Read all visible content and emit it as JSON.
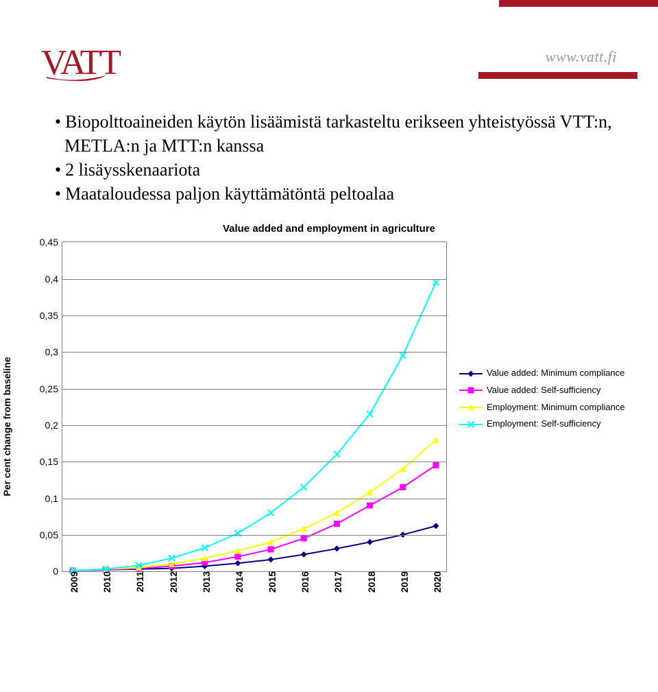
{
  "header": {
    "logo_text": "VATT",
    "logo_color": "#a31925",
    "url_text": "www.vatt.fi",
    "url_color": "#9a9a9a",
    "rule_color": "#a31925"
  },
  "bullets": [
    "Biopolttoaineiden käytön lisäämistä tarkasteltu erikseen yhteistyössä VTT:n, METLA:n ja MTT:n kanssa",
    "2 lisäysskenaariota",
    "Maataloudessa paljon käyttämätöntä peltoalaa"
  ],
  "chart": {
    "type": "line",
    "title": "Value added and employment in agriculture",
    "title_fontsize": 15,
    "ylabel": "Per cent change from baseline",
    "label_fontsize": 14,
    "background_color": "#ffffff",
    "grid_color": "#808080",
    "border_color": "#808080",
    "ylim": [
      0,
      0.45
    ],
    "ytick_step": 0.05,
    "yticks": [
      "0",
      "0,05",
      "0,1",
      "0,15",
      "0,2",
      "0,25",
      "0,3",
      "0,35",
      "0,4",
      "0,45"
    ],
    "x_categories": [
      "2009",
      "2010",
      "2011",
      "2012",
      "2013",
      "2014",
      "2015",
      "2016",
      "2017",
      "2018",
      "2019",
      "2020"
    ],
    "series": [
      {
        "name": "Value added: Minimum compliance",
        "color": "#000080",
        "marker": "diamond",
        "line_width": 2,
        "values": [
          0.001,
          0.002,
          0.003,
          0.004,
          0.007,
          0.011,
          0.016,
          0.023,
          0.031,
          0.04,
          0.05,
          0.062
        ]
      },
      {
        "name": "Value added: Self-sufficiency",
        "color": "#ff00ff",
        "marker": "square",
        "line_width": 2,
        "values": [
          0.001,
          0.002,
          0.004,
          0.007,
          0.012,
          0.02,
          0.03,
          0.045,
          0.065,
          0.09,
          0.115,
          0.145
        ]
      },
      {
        "name": "Employment: Minimum compliance",
        "color": "#ffff00",
        "marker": "triangle",
        "line_width": 2,
        "values": [
          0.001,
          0.003,
          0.005,
          0.01,
          0.018,
          0.028,
          0.04,
          0.058,
          0.08,
          0.108,
          0.14,
          0.18
        ]
      },
      {
        "name": "Employment: Self-sufficiency",
        "color": "#00ffff",
        "marker": "x",
        "line_width": 2,
        "values": [
          0.001,
          0.003,
          0.008,
          0.018,
          0.032,
          0.052,
          0.08,
          0.115,
          0.16,
          0.215,
          0.295,
          0.395
        ]
      }
    ],
    "legend_position": "right",
    "tick_fontsize": 14,
    "xtick_rotation": -90,
    "xtick_fontweight": "bold"
  }
}
